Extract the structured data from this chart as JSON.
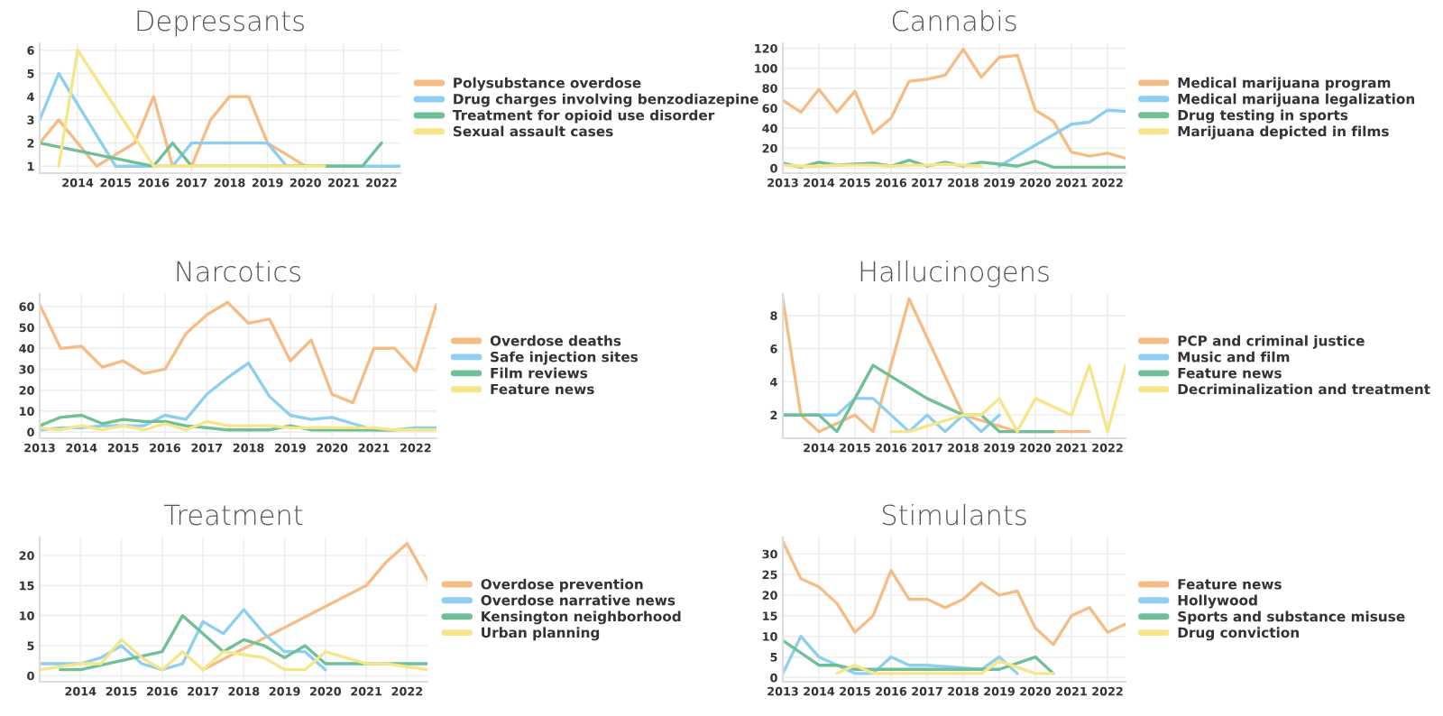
{
  "chart_data": [
    {
      "type": "line",
      "title": "Depressants",
      "legend": "right",
      "grid": true,
      "xlim": [
        2013,
        2022.5
      ],
      "xticks": [
        2014,
        2015,
        2016,
        2017,
        2018,
        2019,
        2020,
        2021,
        2022
      ],
      "ylim": [
        0.7,
        6.3
      ],
      "yticks": [
        1,
        2,
        3,
        4,
        5,
        6
      ],
      "series": [
        {
          "name": "Polysubstance overdose",
          "color": "#f5bd85",
          "x": [
            2013,
            2013.5,
            2014,
            2014.5,
            2015,
            2015.5,
            2016,
            2016.5,
            2017,
            2017.5,
            2018,
            2018.5,
            2019,
            2019.5,
            2020
          ],
          "values": [
            2,
            3,
            2,
            1,
            1.5,
            2,
            4,
            1,
            1,
            3,
            4,
            4,
            2,
            1.5,
            1
          ]
        },
        {
          "name": "Drug charges involving benzodiazepine",
          "color": "#8ccff0",
          "x": [
            2013,
            2013.5,
            2015,
            2015.5,
            2016,
            2016.5,
            2017,
            2017.5,
            2018,
            2018.5,
            2019,
            2019.5,
            2022.5
          ],
          "values": [
            3,
            5,
            1,
            1,
            1,
            1,
            2,
            2,
            2,
            2,
            2,
            1,
            1
          ]
        },
        {
          "name": "Treatment for opioid use disorder",
          "color": "#6fbf97",
          "x": [
            2013,
            2016,
            2016.5,
            2017,
            2020.5,
            2021,
            2021.5,
            2022
          ],
          "values": [
            2,
            1,
            2,
            1,
            1,
            1,
            1,
            2
          ]
        },
        {
          "name": "Sexual assault cases",
          "color": "#f6e68a",
          "x": [
            2013.5,
            2014,
            2016,
            2020.5
          ],
          "values": [
            1,
            6,
            1,
            1
          ]
        }
      ]
    },
    {
      "type": "line",
      "title": "Cannabis",
      "legend": "right",
      "grid": true,
      "xlim": [
        2013,
        2022.5
      ],
      "xticks": [
        2013,
        2014,
        2015,
        2016,
        2017,
        2018,
        2019,
        2020,
        2021,
        2022
      ],
      "ylim": [
        -5,
        125
      ],
      "yticks": [
        0,
        20,
        40,
        60,
        80,
        100,
        120
      ],
      "series": [
        {
          "name": "Medical marijuana program",
          "color": "#f5bd85",
          "x": [
            2013,
            2013.5,
            2014,
            2014.5,
            2015,
            2015.5,
            2016,
            2016.5,
            2017,
            2017.5,
            2018,
            2018.5,
            2019,
            2019.5,
            2020,
            2020.5,
            2021,
            2021.5,
            2022,
            2022.5
          ],
          "values": [
            68,
            56,
            79,
            56,
            77,
            35,
            50,
            87,
            89,
            93,
            119,
            91,
            111,
            113,
            58,
            47,
            16,
            12,
            15,
            10
          ]
        },
        {
          "name": "Medical marijuana legalization",
          "color": "#8ccff0",
          "x": [
            2019,
            2020,
            2021,
            2021.5,
            2022,
            2022.5
          ],
          "values": [
            2,
            23,
            44,
            46,
            58,
            57
          ]
        },
        {
          "name": "Drug testing in sports",
          "color": "#6fbf97",
          "x": [
            2013,
            2013.5,
            2014,
            2014.5,
            2015,
            2015.5,
            2016,
            2016.5,
            2017,
            2017.5,
            2018,
            2018.5,
            2019,
            2019.5,
            2020,
            2020.5,
            2021,
            2021.5,
            2022,
            2022.5
          ],
          "values": [
            5,
            1,
            6,
            3,
            4,
            5,
            2,
            8,
            2,
            6,
            2,
            6,
            4,
            2,
            7,
            1,
            1,
            1,
            1,
            1
          ]
        },
        {
          "name": "Marijuana depicted in films",
          "color": "#f6e68a",
          "x": [
            2013,
            2013.5,
            2014,
            2014.5,
            2015,
            2015.5,
            2016,
            2016.5,
            2017,
            2017.5,
            2018,
            2018.5
          ],
          "values": [
            3,
            2,
            2,
            3,
            3,
            3,
            2,
            3,
            3,
            4,
            3,
            2
          ]
        }
      ]
    },
    {
      "type": "line",
      "title": "Narcotics",
      "legend": "right",
      "grid": true,
      "xlim": [
        2013,
        2022.5
      ],
      "xticks": [
        2013,
        2014,
        2015,
        2016,
        2017,
        2018,
        2019,
        2020,
        2021,
        2022
      ],
      "ylim": [
        -3,
        66
      ],
      "yticks": [
        0,
        10,
        20,
        30,
        40,
        50,
        60
      ],
      "series": [
        {
          "name": "Overdose deaths",
          "color": "#f5bd85",
          "x": [
            2013,
            2013.5,
            2014,
            2014.5,
            2015,
            2015.5,
            2016,
            2016.5,
            2017,
            2017.5,
            2018,
            2018.5,
            2019,
            2019.5,
            2020,
            2020.5,
            2021,
            2021.5,
            2022,
            2022.5
          ],
          "values": [
            61,
            40,
            41,
            31,
            34,
            28,
            30,
            47,
            56,
            62,
            52,
            54,
            34,
            44,
            18,
            14,
            40,
            40,
            29,
            61
          ]
        },
        {
          "name": "Safe injection sites",
          "color": "#8ccff0",
          "x": [
            2013,
            2013.5,
            2014,
            2014.5,
            2015,
            2015.5,
            2016,
            2016.5,
            2017,
            2017.5,
            2018,
            2018.5,
            2019,
            2019.5,
            2020,
            2020.5,
            2021,
            2021.5,
            2022,
            2022.5
          ],
          "values": [
            1,
            2,
            2,
            3,
            3,
            3,
            8,
            6,
            18,
            26,
            33,
            17,
            8,
            6,
            7,
            4,
            1,
            1,
            2,
            2
          ]
        },
        {
          "name": "Film reviews",
          "color": "#6fbf97",
          "x": [
            2013,
            2013.5,
            2014,
            2014.5,
            2015,
            2015.5,
            2016,
            2016.5,
            2017,
            2017.5,
            2018,
            2018.5,
            2019,
            2019.5,
            2020,
            2020.5,
            2021,
            2021.5
          ],
          "values": [
            3,
            7,
            8,
            4,
            6,
            5,
            5,
            3,
            2,
            1,
            1,
            1,
            3,
            1,
            1,
            1,
            1,
            1
          ]
        },
        {
          "name": "Feature news",
          "color": "#f6e68a",
          "x": [
            2013,
            2013.5,
            2014,
            2014.5,
            2015,
            2015.5,
            2016,
            2016.5,
            2017,
            2017.5,
            2018,
            2018.5,
            2019,
            2019.5,
            2020,
            2020.5,
            2021,
            2021.5,
            2022,
            2022.5
          ],
          "values": [
            2,
            1,
            3,
            1,
            3,
            1,
            4,
            1,
            5,
            3,
            3,
            3,
            2,
            2,
            2,
            2,
            2,
            1,
            1,
            1
          ]
        }
      ]
    },
    {
      "type": "line",
      "title": "Hallucinogens",
      "legend": "right",
      "grid": true,
      "xlim": [
        2013,
        2022.5
      ],
      "xticks": [
        2014,
        2015,
        2016,
        2017,
        2018,
        2019,
        2020,
        2021,
        2022
      ],
      "ylim": [
        0.6,
        9.3
      ],
      "yticks": [
        2,
        4,
        6,
        8
      ],
      "series": [
        {
          "name": "PCP and criminal justice",
          "color": "#f5bd85",
          "x": [
            2013,
            2013.5,
            2014,
            2015,
            2015.5,
            2016.5,
            2018,
            2019.5,
            2021.5
          ],
          "values": [
            9,
            2,
            1,
            2,
            1,
            9,
            2,
            1,
            1
          ]
        },
        {
          "name": "Music and film",
          "color": "#8ccff0",
          "x": [
            2013,
            2014.5,
            2015,
            2015.5,
            2016.5,
            2017,
            2017.5,
            2018,
            2018.5,
            2019
          ],
          "values": [
            2,
            2,
            3,
            3,
            1,
            2,
            1,
            2,
            1,
            2
          ]
        },
        {
          "name": "Feature news",
          "color": "#6fbf97",
          "x": [
            2013,
            2014,
            2014.5,
            2015,
            2015.5,
            2017,
            2018,
            2018.5,
            2019,
            2020.5
          ],
          "values": [
            2,
            2,
            1,
            3,
            5,
            3,
            2,
            2,
            1,
            1
          ]
        },
        {
          "name": "Decriminalization and treatment",
          "color": "#f6e68a",
          "x": [
            2016,
            2016.5,
            2018,
            2018.5,
            2019,
            2019.5,
            2020,
            2021,
            2021.5,
            2022,
            2022.5
          ],
          "values": [
            1,
            1,
            2,
            2,
            3,
            1,
            3,
            2,
            5,
            1,
            5
          ]
        }
      ]
    },
    {
      "type": "line",
      "title": "Treatment",
      "legend": "right",
      "grid": true,
      "xlim": [
        2013,
        2022.5
      ],
      "xticks": [
        2014,
        2015,
        2016,
        2017,
        2018,
        2019,
        2020,
        2021,
        2022
      ],
      "ylim": [
        -1,
        23
      ],
      "yticks": [
        0,
        5,
        10,
        15,
        20
      ],
      "series": [
        {
          "name": "Overdose prevention",
          "color": "#f5bd85",
          "x": [
            2017,
            2021,
            2021.5,
            2022,
            2022.5
          ],
          "values": [
            1,
            15,
            19,
            22,
            16
          ]
        },
        {
          "name": "Overdose narrative news",
          "color": "#8ccff0",
          "x": [
            2013,
            2014,
            2014.5,
            2015,
            2015.5,
            2016,
            2016.5,
            2017,
            2017.5,
            2018,
            2018.5,
            2019,
            2019.5,
            2020
          ],
          "values": [
            2,
            2,
            3,
            5,
            2,
            1,
            2,
            9,
            7,
            11,
            7,
            4,
            4,
            1
          ]
        },
        {
          "name": "Kensington neighborhood",
          "color": "#6fbf97",
          "x": [
            2013.5,
            2014,
            2016,
            2016.5,
            2017.5,
            2018,
            2018.5,
            2019,
            2019.5,
            2020,
            2022.5
          ],
          "values": [
            1,
            1,
            4,
            10,
            4,
            6,
            5,
            3,
            5,
            2,
            2
          ]
        },
        {
          "name": "Urban planning",
          "color": "#f6e68a",
          "x": [
            2013,
            2014,
            2014.5,
            2015,
            2015.5,
            2016,
            2016.5,
            2017,
            2017.5,
            2018,
            2018.5,
            2019,
            2019.5,
            2020,
            2021,
            2021.5,
            2022,
            2022.5
          ],
          "values": [
            1,
            2,
            2,
            6,
            3,
            1,
            4,
            1,
            4,
            3.5,
            3,
            1,
            1,
            4,
            2,
            2,
            1.5,
            1
          ]
        }
      ]
    },
    {
      "type": "line",
      "title": "Stimulants",
      "legend": "right",
      "grid": true,
      "xlim": [
        2013,
        2022.5
      ],
      "xticks": [
        2013,
        2014,
        2015,
        2016,
        2017,
        2018,
        2019,
        2020,
        2021,
        2022
      ],
      "ylim": [
        -1,
        34
      ],
      "yticks": [
        0,
        5,
        10,
        15,
        20,
        25,
        30
      ],
      "series": [
        {
          "name": "Feature news",
          "color": "#f5bd85",
          "x": [
            2013,
            2013.5,
            2014,
            2014.5,
            2015,
            2015.5,
            2016,
            2016.5,
            2017,
            2017.5,
            2018,
            2018.5,
            2019,
            2019.5,
            2020,
            2020.5,
            2021,
            2021.5,
            2022,
            2022.5
          ],
          "values": [
            33,
            24,
            22,
            18,
            11,
            15,
            26,
            19,
            19,
            17,
            19,
            23,
            20,
            21,
            12,
            8,
            15,
            17,
            11,
            13
          ]
        },
        {
          "name": "Hollywood",
          "color": "#8ccff0",
          "x": [
            2013,
            2013.5,
            2014,
            2015,
            2015.5,
            2016,
            2016.5,
            2017,
            2018.5,
            2019,
            2019.5
          ],
          "values": [
            1,
            10,
            5,
            1,
            1,
            5,
            3,
            3,
            2,
            5,
            1
          ]
        },
        {
          "name": "Sports and substance misuse",
          "color": "#6fbf97",
          "x": [
            2013,
            2014,
            2014.5,
            2015,
            2019,
            2020,
            2020.5
          ],
          "values": [
            9,
            3,
            3,
            2,
            2,
            5,
            1
          ]
        },
        {
          "name": "Drug conviction",
          "color": "#f6e68a",
          "x": [
            2014.5,
            2015,
            2015.5,
            2018.5,
            2019,
            2020,
            2020.5
          ],
          "values": [
            1,
            3,
            1,
            1,
            4,
            1,
            1
          ]
        }
      ]
    }
  ]
}
